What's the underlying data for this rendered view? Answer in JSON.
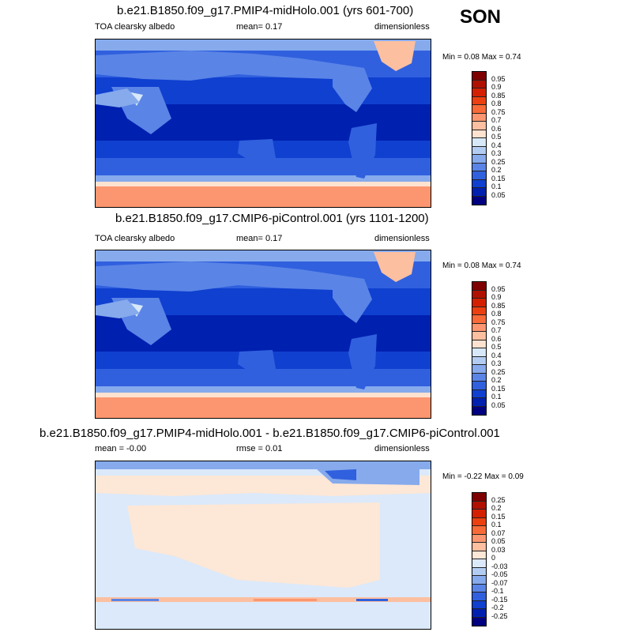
{
  "season": "SON",
  "panels": [
    {
      "title": "b.e21.B1850.f09_g17.PMIP4-midHolo.001 (yrs 601-700)",
      "left_label": "TOA clearsky albedo",
      "center_label": "mean=  0.17",
      "right_label": "dimensionless",
      "minmax": "Min =  0.08 Max =  0.74",
      "colorbar": {
        "labels": [
          "0.95",
          "0.9",
          "0.85",
          "0.8",
          "0.75",
          "0.7",
          "0.6",
          "0.5",
          "0.4",
          "0.3",
          "0.25",
          "0.2",
          "0.15",
          "0.1",
          "0.05"
        ],
        "colors": [
          "#7f0000",
          "#b01000",
          "#d42000",
          "#ec4010",
          "#f86a38",
          "#fc9670",
          "#fcbfa0",
          "#fde2cf",
          "#d7e8f8",
          "#b3cdf2",
          "#86aaec",
          "#5a84e6",
          "#3060de",
          "#1040d0",
          "#0020b0",
          "#000080"
        ]
      }
    },
    {
      "title": "b.e21.B1850.f09_g17.CMIP6-piControl.001 (yrs 1101-1200)",
      "left_label": "TOA clearsky albedo",
      "center_label": "mean=  0.17",
      "right_label": "dimensionless",
      "minmax": "Min =  0.08 Max =  0.74",
      "colorbar": {
        "labels": [
          "0.95",
          "0.9",
          "0.85",
          "0.8",
          "0.75",
          "0.7",
          "0.6",
          "0.5",
          "0.4",
          "0.3",
          "0.25",
          "0.2",
          "0.15",
          "0.1",
          "0.05"
        ],
        "colors": [
          "#7f0000",
          "#b01000",
          "#d42000",
          "#ec4010",
          "#f86a38",
          "#fc9670",
          "#fcbfa0",
          "#fde2cf",
          "#d7e8f8",
          "#b3cdf2",
          "#86aaec",
          "#5a84e6",
          "#3060de",
          "#1040d0",
          "#0020b0",
          "#000080"
        ]
      }
    },
    {
      "title": "b.e21.B1850.f09_g17.PMIP4-midHolo.001 - b.e21.B1850.f09_g17.CMIP6-piControl.001",
      "left_label": "mean =  -0.00",
      "center_label": "rmse =  0.01",
      "right_label": "dimensionless",
      "minmax": "Min =  -0.22 Max =   0.09",
      "colorbar": {
        "labels": [
          "0.25",
          "0.2",
          "0.15",
          "0.1",
          "0.07",
          "0.05",
          "0.03",
          "0",
          "-0.03",
          "-0.05",
          "-0.07",
          "-0.1",
          "-0.15",
          "-0.2",
          "-0.25"
        ],
        "colors": [
          "#7f0000",
          "#b01000",
          "#d42000",
          "#ec4010",
          "#f86a38",
          "#fc9670",
          "#fcbfa0",
          "#fde7d6",
          "#dbe9fa",
          "#b3cdf2",
          "#86aaec",
          "#5a84e6",
          "#3060de",
          "#1040d0",
          "#0020b0",
          "#000080"
        ]
      }
    }
  ]
}
